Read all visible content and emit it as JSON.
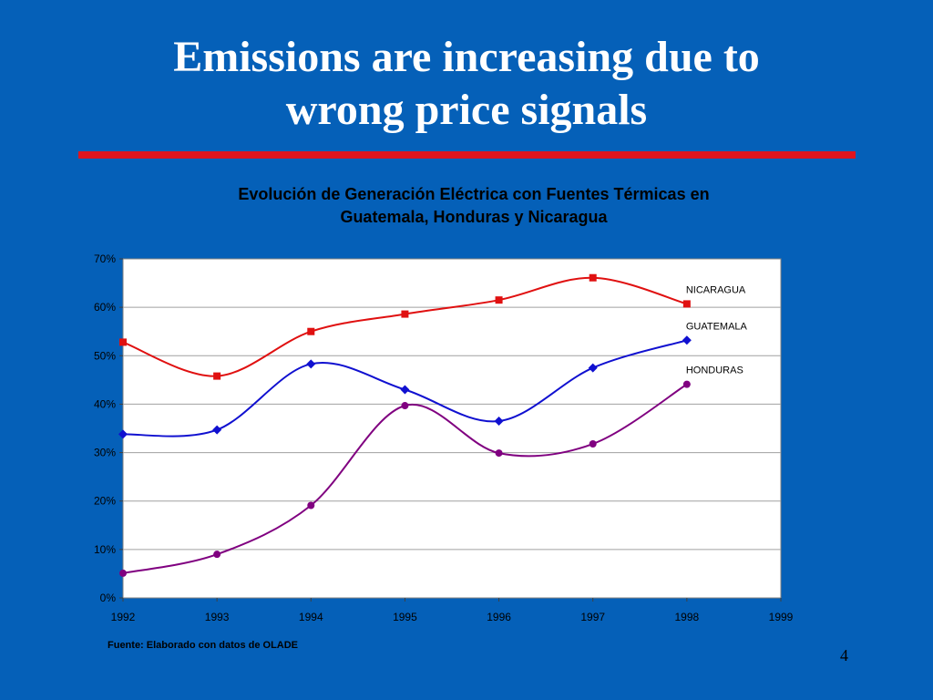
{
  "slide": {
    "title_line1": "Emissions are increasing due to",
    "title_line2": "wrong  price signals",
    "source": "Fuente:  Elaborado con datos de OLADE",
    "page_number": "4"
  },
  "colors": {
    "background": "#0560b8",
    "rule": "#e0141e",
    "plot_bg": "#ffffff",
    "gridline": "#a0a0a0"
  },
  "chart_data": {
    "type": "line",
    "title_line1": "Evolución de Generación Eléctrica con Fuentes Térmicas en",
    "title_line2": "Guatemala, Honduras y Nicaragua",
    "xlabel": "",
    "ylabel": "",
    "x": [
      1992,
      1993,
      1994,
      1995,
      1996,
      1997,
      1998
    ],
    "x_ticks": [
      "1992",
      "1993",
      "1994",
      "1995",
      "1996",
      "1997",
      "1998",
      "1999"
    ],
    "xlim": [
      1992,
      1999
    ],
    "y_ticks": [
      "0%",
      "10%",
      "20%",
      "30%",
      "40%",
      "50%",
      "60%",
      "70%"
    ],
    "ylim": [
      0,
      70
    ],
    "y_unit": "%",
    "grid": true,
    "legend": "inline labels at series ends",
    "series": [
      {
        "name": "NICARAGUA",
        "color": "#e01010",
        "marker": "square",
        "values": [
          52.8,
          45.8,
          55.0,
          58.6,
          61.5,
          66.1,
          60.7
        ]
      },
      {
        "name": "GUATEMALA",
        "color": "#1010d0",
        "marker": "diamond",
        "values": [
          33.8,
          34.7,
          48.3,
          43.0,
          36.5,
          47.5,
          53.2
        ]
      },
      {
        "name": "HONDURAS",
        "color": "#800080",
        "marker": "circle",
        "values": [
          5.1,
          9.0,
          19.1,
          39.7,
          29.9,
          31.8,
          44.1
        ]
      }
    ]
  }
}
